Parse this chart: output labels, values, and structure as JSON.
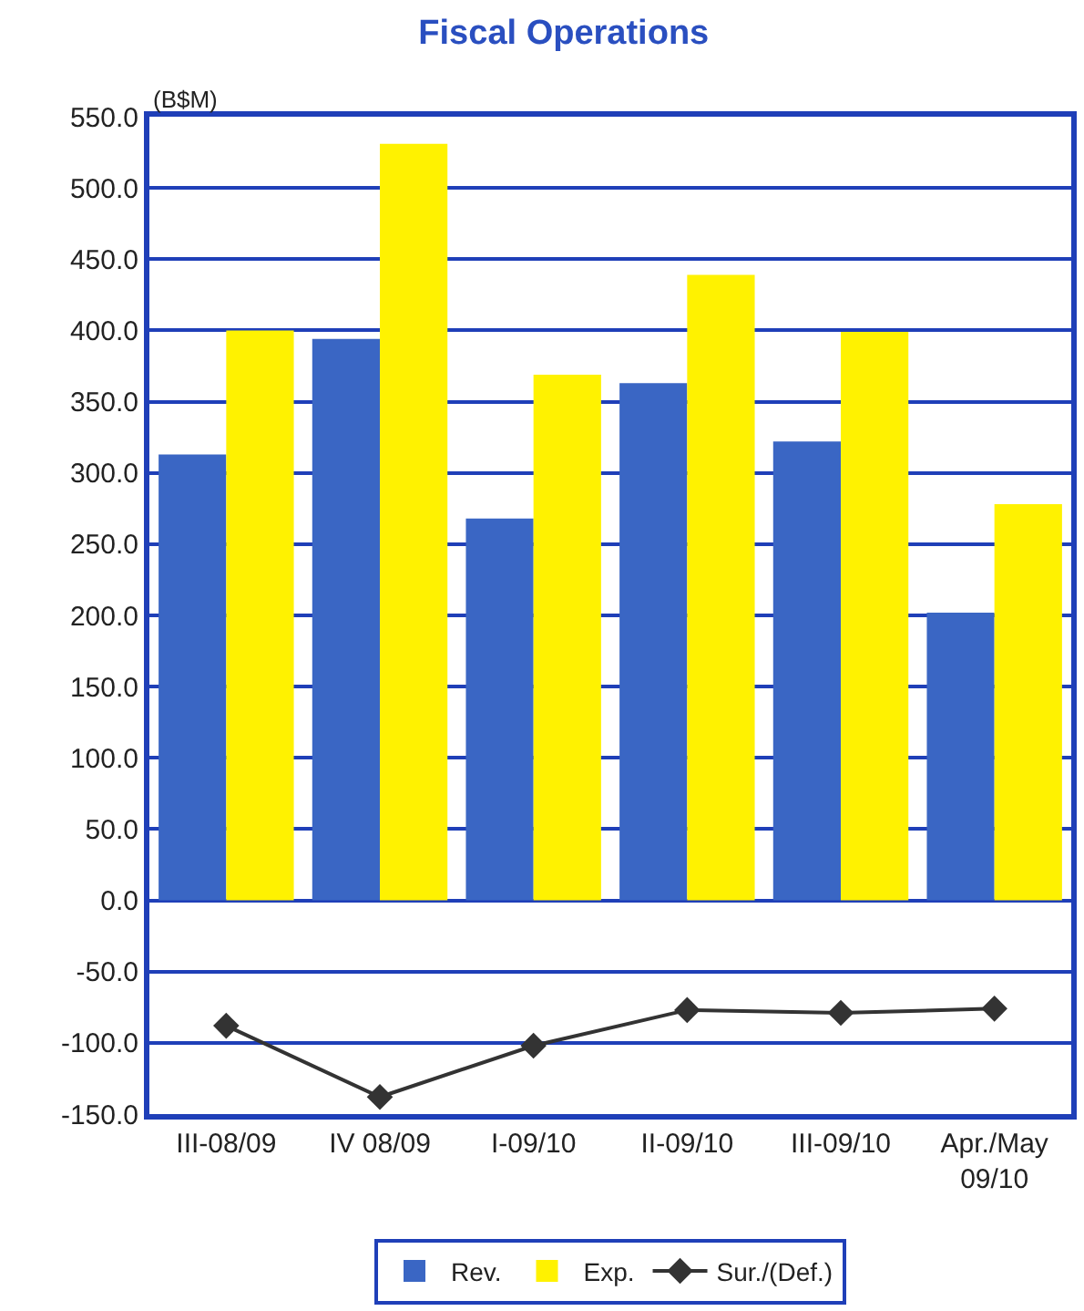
{
  "chart_data": {
    "type": "bar",
    "title": "Fiscal Operations",
    "ylabel": "(B$M)",
    "categories": [
      "III-08/09",
      "IV 08/09",
      "I-09/10",
      "II-09/10",
      "III-09/10",
      "Apr./May\n09/10"
    ],
    "series": [
      {
        "name": "Rev.",
        "color": "#3a66c4",
        "values": [
          313,
          394,
          268,
          363,
          322,
          202
        ]
      },
      {
        "name": "Exp.",
        "color": "#fff200",
        "values": [
          400,
          531,
          369,
          439,
          399,
          278
        ]
      },
      {
        "name": "Sur./(Def.)",
        "type": "line",
        "color": "#333333",
        "marker": "diamond",
        "values": [
          -88,
          -138,
          -102,
          -77,
          -79,
          -76
        ]
      }
    ],
    "ylim": [
      -150,
      550
    ],
    "yticks": [
      {
        "value": -150,
        "label": "-150.0"
      },
      {
        "value": -100,
        "label": "-100.0"
      },
      {
        "value": -50,
        "label": "-50.0"
      },
      {
        "value": 0,
        "label": "0.0"
      },
      {
        "value": 50,
        "label": "50.0"
      },
      {
        "value": 100,
        "label": "100.0"
      },
      {
        "value": 150,
        "label": "150.0"
      },
      {
        "value": 200,
        "label": "200.0"
      },
      {
        "value": 250,
        "label": "250.0"
      },
      {
        "value": 300,
        "label": "300.0"
      },
      {
        "value": 350,
        "label": "350.0"
      },
      {
        "value": 400,
        "label": "400.0"
      },
      {
        "value": 450,
        "label": "450.0"
      },
      {
        "value": 500,
        "label": "500.0"
      },
      {
        "value": 550,
        "label": "550.0"
      }
    ],
    "grid": "y",
    "legend": "bottom"
  }
}
